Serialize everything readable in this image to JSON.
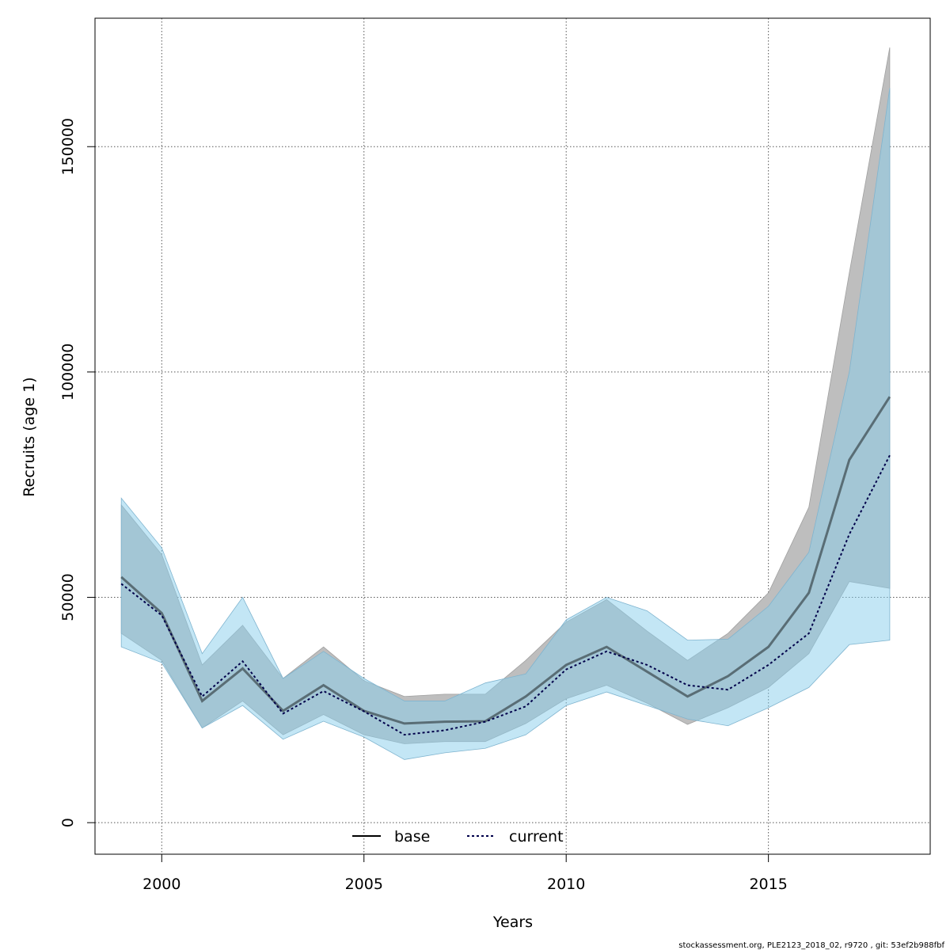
{
  "chart_data": {
    "type": "line",
    "xlabel": "Years",
    "ylabel": "Recruits (age 1)",
    "xlim": [
      1998.35,
      2019.0
    ],
    "ylim": [
      -7000,
      178500
    ],
    "xticks": [
      "2000",
      "2005",
      "2010",
      "2015"
    ],
    "yticks": [
      "0",
      "50000",
      "100000",
      "150000"
    ],
    "grid": true,
    "legend_position": "bottom-center",
    "x": [
      1999,
      2000,
      2001,
      2002,
      2003,
      2004,
      2005,
      2006,
      2007,
      2008,
      2009,
      2010,
      2011,
      2012,
      2013,
      2014,
      2015,
      2016,
      2017,
      2018
    ],
    "series": [
      {
        "name": "base",
        "line_style": "solid",
        "line_color": "#000000",
        "band_color": "#bebebe",
        "values": [
          54500,
          46500,
          27000,
          34200,
          24800,
          30500,
          24800,
          22000,
          22400,
          22500,
          28000,
          35000,
          39000,
          33500,
          28000,
          32500,
          39000,
          51000,
          80500,
          94500
        ],
        "upper": [
          70500,
          59500,
          35000,
          43800,
          32000,
          39000,
          31500,
          28000,
          28500,
          28500,
          36000,
          44500,
          49500,
          42500,
          36000,
          42000,
          51000,
          70000,
          122000,
          172000
        ],
        "lower": [
          42000,
          36000,
          21000,
          27000,
          19500,
          24000,
          19500,
          17500,
          18000,
          18000,
          22000,
          27500,
          30500,
          26500,
          21800,
          25500,
          30000,
          37500,
          53500,
          52000
        ]
      },
      {
        "name": "current",
        "line_style": "dotted",
        "line_color": "#00004a",
        "band_color": "#87ceeb",
        "values": [
          53000,
          46000,
          28000,
          35800,
          24200,
          29200,
          24700,
          19500,
          20500,
          22400,
          25800,
          34000,
          38000,
          35000,
          30500,
          29500,
          35000,
          42000,
          64000,
          81500
        ],
        "upper": [
          72000,
          61000,
          37500,
          50000,
          32000,
          38000,
          32000,
          27000,
          27000,
          31000,
          33000,
          45000,
          50000,
          47000,
          40500,
          40700,
          48000,
          60000,
          100000,
          163000
        ],
        "lower": [
          39000,
          35500,
          21000,
          26000,
          18500,
          22500,
          19000,
          14000,
          15500,
          16500,
          19500,
          26000,
          29000,
          26000,
          23000,
          21500,
          25500,
          30000,
          39500,
          40500
        ]
      }
    ],
    "footer": "stockassessment.org, PLE2123_2018_02, r9720 , git: 53ef2b988fbf"
  }
}
